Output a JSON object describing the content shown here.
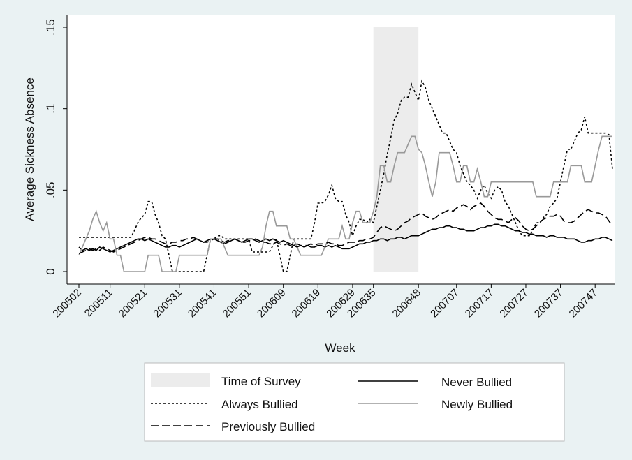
{
  "chart_data": {
    "type": "line",
    "x_label": "Week",
    "y_label": "Average Sickness Absence",
    "categories": [
      "200502",
      null,
      null,
      null,
      null,
      null,
      null,
      null,
      null,
      "200511",
      null,
      null,
      null,
      null,
      null,
      null,
      null,
      null,
      null,
      "200521",
      null,
      null,
      null,
      null,
      null,
      null,
      null,
      null,
      null,
      "200531",
      null,
      null,
      null,
      null,
      null,
      null,
      null,
      null,
      null,
      "200541",
      null,
      null,
      null,
      null,
      null,
      null,
      null,
      null,
      null,
      "200551",
      null,
      null,
      null,
      null,
      null,
      null,
      null,
      null,
      null,
      "200609",
      null,
      null,
      null,
      null,
      null,
      null,
      null,
      null,
      null,
      "200619",
      null,
      null,
      null,
      null,
      null,
      null,
      null,
      null,
      null,
      "200629",
      null,
      null,
      null,
      null,
      null,
      "200635",
      null,
      null,
      null,
      null,
      null,
      null,
      null,
      null,
      null,
      null,
      null,
      null,
      "200648",
      null,
      null,
      null,
      null,
      null,
      null,
      null,
      null,
      null,
      null,
      "200707",
      null,
      null,
      null,
      null,
      null,
      null,
      null,
      null,
      null,
      "200717",
      null,
      null,
      null,
      null,
      null,
      null,
      null,
      null,
      null,
      "200727",
      null,
      null,
      null,
      null,
      null,
      null,
      null,
      null,
      null,
      "200737",
      null,
      null,
      null,
      null,
      null,
      null,
      null,
      null,
      null,
      "200747",
      null,
      null,
      null,
      null,
      null
    ],
    "ylim": [
      0,
      0.15
    ],
    "yticks": [
      0,
      {
        "value": 0.05,
        "label": ".05"
      },
      {
        "value": 0.1,
        "label": ".1"
      },
      {
        "value": 0.15,
        "label": ".15"
      }
    ],
    "shade": {
      "name": "Time of Survey",
      "from": "200635",
      "to": "200648",
      "color": "#ececec"
    },
    "series": [
      {
        "name": "Never Bullied",
        "color": "#000000",
        "dash": "solid",
        "values": [
          0.015,
          0.013,
          0.014,
          0.013,
          0.014,
          0.013,
          0.015,
          0.014,
          0.013,
          0.012,
          0.013,
          0.014,
          0.015,
          0.016,
          0.017,
          0.018,
          0.019,
          0.02,
          0.02,
          0.019,
          0.02,
          0.019,
          0.018,
          0.017,
          0.016,
          0.015,
          0.015,
          0.016,
          0.016,
          0.015,
          0.016,
          0.017,
          0.018,
          0.019,
          0.02,
          0.019,
          0.018,
          0.019,
          0.02,
          0.02,
          0.019,
          0.018,
          0.017,
          0.018,
          0.019,
          0.02,
          0.019,
          0.018,
          0.019,
          0.02,
          0.02,
          0.019,
          0.018,
          0.019,
          0.02,
          0.019,
          0.02,
          0.019,
          0.018,
          0.019,
          0.018,
          0.017,
          0.016,
          0.017,
          0.016,
          0.015,
          0.016,
          0.015,
          0.015,
          0.016,
          0.016,
          0.015,
          0.016,
          0.015,
          0.016,
          0.015,
          0.014,
          0.014,
          0.014,
          0.015,
          0.016,
          0.017,
          0.017,
          0.018,
          0.018,
          0.019,
          0.019,
          0.02,
          0.02,
          0.019,
          0.02,
          0.02,
          0.021,
          0.021,
          0.02,
          0.021,
          0.022,
          0.022,
          0.022,
          0.023,
          0.024,
          0.025,
          0.026,
          0.026,
          0.027,
          0.027,
          0.028,
          0.028,
          0.027,
          0.027,
          0.026,
          0.026,
          0.025,
          0.025,
          0.025,
          0.026,
          0.027,
          0.027,
          0.028,
          0.028,
          0.029,
          0.029,
          0.028,
          0.028,
          0.027,
          0.026,
          0.025,
          0.025,
          0.024,
          0.024,
          0.023,
          0.023,
          0.022,
          0.022,
          0.022,
          0.021,
          0.022,
          0.022,
          0.021,
          0.021,
          0.021,
          0.02,
          0.02,
          0.02,
          0.019,
          0.018,
          0.018,
          0.019,
          0.019,
          0.02,
          0.02,
          0.021,
          0.021,
          0.02,
          0.019
        ]
      },
      {
        "name": "Always Bullied",
        "color": "#000000",
        "dash": "dotted",
        "values": [
          0.021,
          0.021,
          0.021,
          0.021,
          0.021,
          0.021,
          0.021,
          0.021,
          0.021,
          0.021,
          0.021,
          0.021,
          0.021,
          0.021,
          0.021,
          0.021,
          0.025,
          0.03,
          0.033,
          0.035,
          0.043,
          0.043,
          0.035,
          0.03,
          0.022,
          0.02,
          0.01,
          0,
          0,
          0,
          0,
          0,
          0,
          0,
          0,
          0,
          0,
          0.01,
          0.02,
          0.02,
          0.022,
          0.022,
          0.02,
          0.02,
          0.02,
          0.02,
          0.02,
          0.02,
          0.02,
          0.02,
          0.012,
          0.012,
          0.012,
          0.012,
          0.012,
          0.012,
          0.016,
          0.02,
          0.01,
          0,
          0,
          0.01,
          0.02,
          0.02,
          0.02,
          0.02,
          0.02,
          0.02,
          0.03,
          0.042,
          0.042,
          0.043,
          0.047,
          0.053,
          0.045,
          0.043,
          0.043,
          0.035,
          0.03,
          0.022,
          0.028,
          0.032,
          0.032,
          0.03,
          0.032,
          0.03,
          0.04,
          0.05,
          0.06,
          0.072,
          0.082,
          0.093,
          0.097,
          0.105,
          0.107,
          0.107,
          0.115,
          0.11,
          0.105,
          0.117,
          0.113,
          0.105,
          0.1,
          0.095,
          0.09,
          0.085,
          0.085,
          0.08,
          0.075,
          0.073,
          0.065,
          0.06,
          0.055,
          0.053,
          0.05,
          0.045,
          0.05,
          0.053,
          0.048,
          0.045,
          0.05,
          0.052,
          0.05,
          0.043,
          0.04,
          0.035,
          0.03,
          0.025,
          0.022,
          0.022,
          0.022,
          0.025,
          0.03,
          0.03,
          0.033,
          0.035,
          0.04,
          0.042,
          0.045,
          0.055,
          0.065,
          0.075,
          0.075,
          0.08,
          0.085,
          0.087,
          0.095,
          0.085,
          0.085,
          0.085,
          0.085,
          0.085,
          0.085,
          0.084,
          0.063
        ]
      },
      {
        "name": "Newly Bullied",
        "color": "#999999",
        "dash": "solid",
        "values": [
          0.01,
          0.015,
          0.02,
          0.025,
          0.032,
          0.037,
          0.03,
          0.025,
          0.03,
          0.02,
          0.02,
          0.01,
          0.01,
          0,
          0,
          0,
          0,
          0,
          0,
          0,
          0.01,
          0.01,
          0.01,
          0.01,
          0,
          0,
          0,
          0,
          0,
          0.01,
          0.01,
          0.01,
          0.01,
          0.01,
          0.01,
          0.01,
          0.01,
          0.01,
          0.02,
          0.02,
          0.02,
          0.02,
          0.015,
          0.01,
          0.01,
          0.01,
          0.01,
          0.01,
          0.01,
          0.01,
          0.01,
          0.01,
          0.01,
          0.015,
          0.028,
          0.037,
          0.037,
          0.028,
          0.028,
          0.028,
          0.028,
          0.02,
          0.02,
          0.015,
          0.01,
          0.01,
          0.01,
          0.01,
          0.01,
          0.01,
          0.01,
          0.015,
          0.02,
          0.02,
          0.02,
          0.02,
          0.028,
          0.02,
          0.02,
          0.03,
          0.037,
          0.037,
          0.03,
          0.03,
          0.03,
          0.037,
          0.046,
          0.065,
          0.065,
          0.055,
          0.055,
          0.065,
          0.073,
          0.073,
          0.073,
          0.078,
          0.083,
          0.083,
          0.075,
          0.073,
          0.065,
          0.055,
          0.046,
          0.055,
          0.073,
          0.073,
          0.073,
          0.073,
          0.065,
          0.055,
          0.055,
          0.065,
          0.065,
          0.055,
          0.055,
          0.063,
          0.055,
          0.046,
          0.046,
          0.055,
          0.055,
          0.055,
          0.055,
          0.055,
          0.055,
          0.055,
          0.055,
          0.055,
          0.055,
          0.055,
          0.055,
          0.055,
          0.046,
          0.046,
          0.046,
          0.046,
          0.046,
          0.055,
          0.055,
          0.055,
          0.055,
          0.055,
          0.065,
          0.065,
          0.065,
          0.065,
          0.055,
          0.055,
          0.055,
          0.065,
          0.075,
          0.083,
          0.083,
          0.083,
          0.083
        ]
      },
      {
        "name": "Previously Bullied",
        "color": "#000000",
        "dash": "dashed",
        "values": [
          0.011,
          0.012,
          0.013,
          0.014,
          0.013,
          0.014,
          0.013,
          0.015,
          0.014,
          0.013,
          0.012,
          0.013,
          0.014,
          0.015,
          0.016,
          0.017,
          0.018,
          0.019,
          0.02,
          0.021,
          0.021,
          0.02,
          0.02,
          0.019,
          0.018,
          0.017,
          0.017,
          0.018,
          0.018,
          0.019,
          0.019,
          0.02,
          0.02,
          0.021,
          0.02,
          0.019,
          0.018,
          0.018,
          0.019,
          0.02,
          0.02,
          0.019,
          0.018,
          0.019,
          0.019,
          0.02,
          0.019,
          0.018,
          0.018,
          0.019,
          0.019,
          0.02,
          0.019,
          0.018,
          0.018,
          0.017,
          0.017,
          0.018,
          0.017,
          0.016,
          0.017,
          0.016,
          0.016,
          0.015,
          0.016,
          0.016,
          0.016,
          0.017,
          0.016,
          0.017,
          0.017,
          0.017,
          0.018,
          0.017,
          0.017,
          0.016,
          0.016,
          0.017,
          0.018,
          0.018,
          0.018,
          0.019,
          0.019,
          0.02,
          0.02,
          0.021,
          0.024,
          0.027,
          0.028,
          0.027,
          0.026,
          0.025,
          0.026,
          0.028,
          0.03,
          0.031,
          0.033,
          0.034,
          0.035,
          0.036,
          0.034,
          0.033,
          0.032,
          0.033,
          0.035,
          0.036,
          0.037,
          0.038,
          0.037,
          0.039,
          0.04,
          0.041,
          0.04,
          0.038,
          0.04,
          0.041,
          0.042,
          0.04,
          0.037,
          0.035,
          0.033,
          0.032,
          0.032,
          0.031,
          0.03,
          0.032,
          0.033,
          0.031,
          0.028,
          0.026,
          0.025,
          0.026,
          0.028,
          0.03,
          0.032,
          0.033,
          0.034,
          0.034,
          0.035,
          0.034,
          0.031,
          0.03,
          0.03,
          0.031,
          0.033,
          0.035,
          0.037,
          0.038,
          0.037,
          0.036,
          0.036,
          0.035,
          0.034,
          0.031,
          0.028
        ]
      }
    ]
  }
}
